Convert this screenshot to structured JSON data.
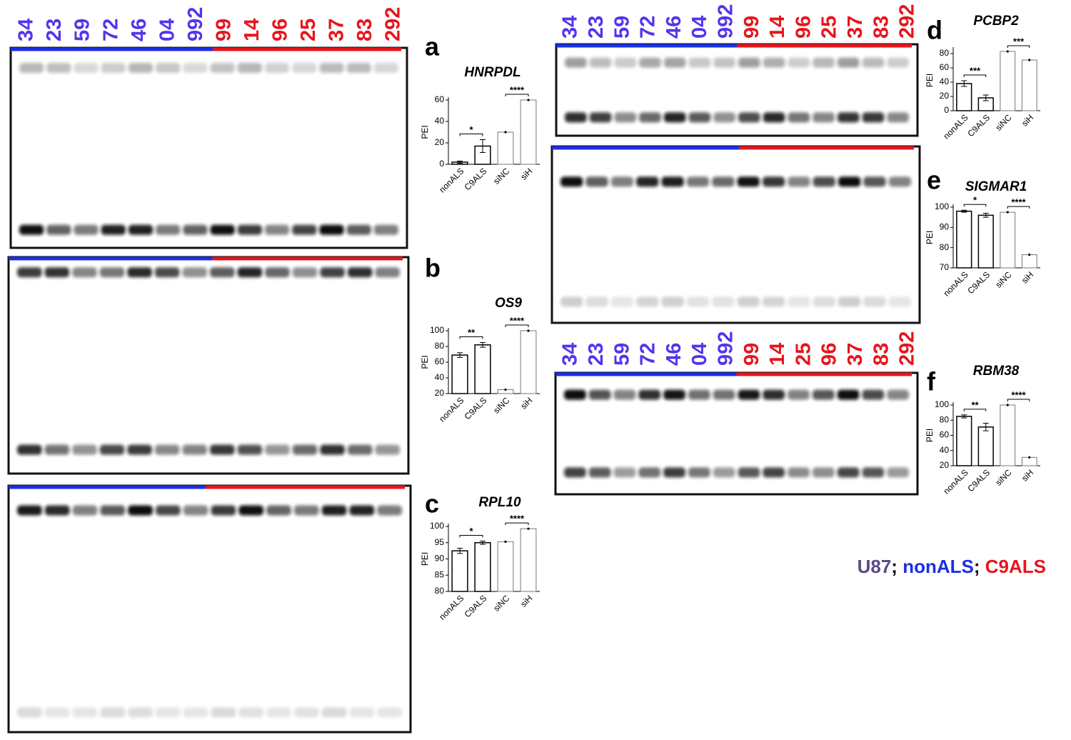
{
  "chart_data": [
    {
      "type": "bar",
      "letter": "a",
      "title": "HNRPDL",
      "ylabel": "PEI",
      "categories": [
        "nonALS",
        "C9ALS",
        "siNC",
        "siH"
      ],
      "values": [
        2,
        17,
        30,
        60
      ],
      "errors": [
        1,
        6,
        null,
        null
      ],
      "ylim": [
        0,
        60
      ],
      "yticks": [
        0,
        20,
        40,
        60
      ],
      "significance": [
        "*",
        "****"
      ]
    },
    {
      "type": "bar",
      "letter": "b",
      "title": "OS9",
      "ylabel": "PEI",
      "categories": [
        "nonALS",
        "C9ALS",
        "siNC",
        "siH"
      ],
      "values": [
        69,
        82,
        25,
        100
      ],
      "errors": [
        3,
        3,
        null,
        null
      ],
      "ylim": [
        20,
        100
      ],
      "yticks": [
        20,
        40,
        60,
        80,
        100
      ],
      "significance": [
        "**",
        "****"
      ]
    },
    {
      "type": "bar",
      "letter": "c",
      "title": "RPL10",
      "ylabel": "PEI",
      "categories": [
        "nonALS",
        "C9ALS",
        "siNC",
        "siH"
      ],
      "values": [
        92.5,
        95,
        95.3,
        99.3
      ],
      "errors": [
        0.8,
        0.5,
        null,
        null
      ],
      "ylim": [
        80,
        100
      ],
      "yticks": [
        80,
        85,
        90,
        95,
        100
      ],
      "significance": [
        "*",
        "****"
      ]
    },
    {
      "type": "bar",
      "letter": "d",
      "title": "PCBP2",
      "ylabel": "PEI",
      "categories": [
        "nonALS",
        "C9ALS",
        "siNC",
        "siH"
      ],
      "values": [
        38,
        18,
        83,
        71
      ],
      "errors": [
        4,
        4,
        null,
        null
      ],
      "ylim": [
        0,
        85
      ],
      "yticks": [
        0,
        20,
        40,
        60,
        80
      ],
      "significance": [
        "***",
        "***"
      ]
    },
    {
      "type": "bar",
      "letter": "e",
      "title": "SIGMAR1",
      "ylabel": "PEI",
      "categories": [
        "nonALS",
        "C9ALS",
        "siNC",
        "siH"
      ],
      "values": [
        98,
        96,
        97.5,
        76.5
      ],
      "errors": [
        0.5,
        1,
        null,
        null
      ],
      "ylim": [
        70,
        100
      ],
      "yticks": [
        70,
        80,
        90,
        100
      ],
      "significance": [
        "*",
        "****"
      ]
    },
    {
      "type": "bar",
      "letter": "f",
      "title": "RBM38",
      "ylabel": "PEI",
      "categories": [
        "nonALS",
        "C9ALS",
        "siNC",
        "siH"
      ],
      "values": [
        85,
        71,
        100,
        31
      ],
      "errors": [
        2,
        5,
        null,
        null
      ],
      "ylim": [
        20,
        100
      ],
      "yticks": [
        20,
        40,
        60,
        80,
        100
      ],
      "significance": [
        "**",
        "****"
      ]
    }
  ],
  "lane_sets": [
    {
      "nonALS": [
        "34",
        "23",
        "59",
        "72",
        "46",
        "04",
        "992"
      ],
      "C9ALS": [
        "99",
        "14",
        "96",
        "25",
        "37",
        "83",
        "292"
      ]
    },
    {
      "nonALS": [
        "34",
        "23",
        "59",
        "72",
        "46",
        "04",
        "992"
      ],
      "C9ALS": [
        "99",
        "14",
        "96",
        "25",
        "37",
        "83",
        "292"
      ]
    },
    {
      "nonALS": [
        "34",
        "23",
        "59",
        "72",
        "46",
        "04",
        "992"
      ],
      "C9ALS": [
        "99",
        "14",
        "25",
        "96",
        "37",
        "83",
        "292"
      ]
    }
  ],
  "legend": {
    "items": [
      {
        "text": "U87",
        "color": "#5a4a86"
      },
      {
        "text": "nonALS",
        "color": "#1c2ee6"
      },
      {
        "text": "C9ALS",
        "color": "#e8141c"
      }
    ],
    "separator": ";"
  }
}
